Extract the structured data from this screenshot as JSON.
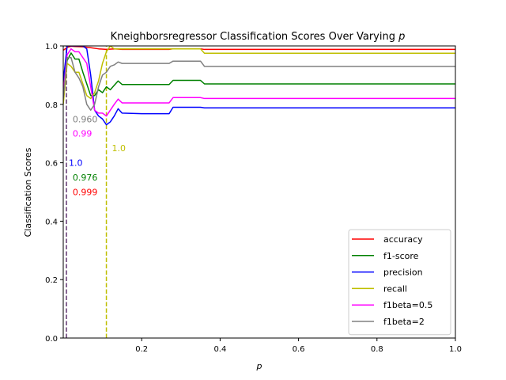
{
  "chart_data": {
    "type": "line",
    "title": "Kneighborsregressor Classification Scores Over Varying ",
    "title_var": "p",
    "xlabel": "p",
    "ylabel": "Classification Scores",
    "xlim": [
      0.0,
      1.0
    ],
    "ylim": [
      0.0,
      1.0
    ],
    "x_ticks": [
      0.2,
      0.4,
      0.6,
      0.8,
      1.0
    ],
    "x_tick_labels": [
      "0.2",
      "0.4",
      "0.6",
      "0.8",
      "1.0"
    ],
    "y_ticks": [
      0.0,
      0.2,
      0.4,
      0.6,
      0.8,
      1.0
    ],
    "y_tick_labels": [
      "0.0",
      "0.2",
      "0.4",
      "0.6",
      "0.8",
      "1.0"
    ],
    "grid": false,
    "legend_position": "bottom-right",
    "series": [
      {
        "name": "accuracy",
        "color": "#ff0000",
        "x": [
          0.0,
          0.01,
          0.02,
          0.03,
          0.05,
          0.07,
          0.09,
          0.11,
          0.13,
          0.15,
          0.2,
          0.27,
          0.28,
          0.35,
          0.36,
          0.4,
          0.6,
          0.8,
          1.0
        ],
        "y": [
          0.985,
          0.995,
          0.999,
          0.998,
          0.997,
          0.994,
          0.99,
          0.988,
          0.99,
          0.988,
          0.988,
          0.988,
          0.99,
          0.99,
          0.988,
          0.988,
          0.988,
          0.988,
          0.988
        ]
      },
      {
        "name": "f1-score",
        "color": "#008000",
        "x": [
          0.0,
          0.01,
          0.02,
          0.03,
          0.04,
          0.05,
          0.06,
          0.07,
          0.08,
          0.09,
          0.1,
          0.11,
          0.12,
          0.13,
          0.14,
          0.15,
          0.2,
          0.27,
          0.28,
          0.35,
          0.36,
          0.4,
          0.6,
          0.8,
          1.0
        ],
        "y": [
          0.87,
          0.95,
          0.976,
          0.955,
          0.955,
          0.91,
          0.87,
          0.83,
          0.83,
          0.85,
          0.84,
          0.86,
          0.85,
          0.865,
          0.88,
          0.868,
          0.868,
          0.868,
          0.882,
          0.882,
          0.87,
          0.87,
          0.87,
          0.87,
          0.87
        ]
      },
      {
        "name": "precision",
        "color": "#0000ff",
        "x": [
          0.0,
          0.01,
          0.02,
          0.03,
          0.05,
          0.06,
          0.07,
          0.08,
          0.09,
          0.1,
          0.11,
          0.12,
          0.13,
          0.14,
          0.15,
          0.2,
          0.27,
          0.28,
          0.35,
          0.36,
          0.4,
          0.6,
          0.8,
          1.0
        ],
        "y": [
          0.88,
          1.0,
          1.0,
          1.0,
          1.0,
          0.99,
          0.9,
          0.78,
          0.76,
          0.75,
          0.73,
          0.74,
          0.76,
          0.785,
          0.77,
          0.768,
          0.768,
          0.79,
          0.79,
          0.788,
          0.788,
          0.788,
          0.788,
          0.788
        ]
      },
      {
        "name": "recall",
        "color": "#bfbf00",
        "x": [
          0.0,
          0.01,
          0.02,
          0.03,
          0.04,
          0.05,
          0.06,
          0.07,
          0.08,
          0.09,
          0.1,
          0.11,
          0.12,
          0.13,
          0.2,
          0.27,
          0.28,
          0.35,
          0.36,
          0.4,
          0.6,
          0.8,
          1.0
        ],
        "y": [
          0.8,
          0.94,
          0.93,
          0.91,
          0.91,
          0.87,
          0.83,
          0.82,
          0.84,
          0.88,
          0.94,
          0.98,
          1.0,
          0.99,
          0.99,
          0.99,
          0.99,
          0.99,
          0.975,
          0.975,
          0.975,
          0.975,
          0.975
        ]
      },
      {
        "name": "f1beta=0.5",
        "color": "#ff00ff",
        "x": [
          0.0,
          0.01,
          0.02,
          0.03,
          0.04,
          0.05,
          0.06,
          0.07,
          0.08,
          0.09,
          0.1,
          0.11,
          0.12,
          0.13,
          0.14,
          0.15,
          0.2,
          0.27,
          0.28,
          0.35,
          0.36,
          0.4,
          0.6,
          0.8,
          1.0
        ],
        "y": [
          0.84,
          0.97,
          0.99,
          0.98,
          0.98,
          0.96,
          0.94,
          0.86,
          0.78,
          0.77,
          0.77,
          0.76,
          0.78,
          0.8,
          0.818,
          0.805,
          0.805,
          0.805,
          0.823,
          0.823,
          0.82,
          0.82,
          0.82,
          0.82,
          0.82
        ]
      },
      {
        "name": "f1beta=2",
        "color": "#808080",
        "x": [
          0.0,
          0.01,
          0.02,
          0.03,
          0.04,
          0.05,
          0.06,
          0.07,
          0.08,
          0.09,
          0.1,
          0.11,
          0.12,
          0.13,
          0.14,
          0.15,
          0.2,
          0.27,
          0.28,
          0.35,
          0.36,
          0.4,
          0.6,
          0.8,
          1.0
        ],
        "y": [
          0.82,
          0.96,
          0.96,
          0.91,
          0.89,
          0.86,
          0.8,
          0.78,
          0.8,
          0.86,
          0.9,
          0.91,
          0.93,
          0.935,
          0.945,
          0.94,
          0.94,
          0.94,
          0.948,
          0.948,
          0.93,
          0.93,
          0.93,
          0.93,
          0.93
        ]
      }
    ],
    "vlines": [
      {
        "x": 0.008,
        "color": "#ff0000"
      },
      {
        "x": 0.008,
        "color": "#008000"
      },
      {
        "x": 0.008,
        "color": "#0000ff"
      },
      {
        "x": 0.008,
        "color": "#ff00ff"
      },
      {
        "x": 0.008,
        "color": "#808080"
      },
      {
        "x": 0.11,
        "color": "#bfbf00"
      }
    ],
    "annotations": [
      {
        "text": "0.999",
        "color": "#ff0000",
        "x": 0.02,
        "y": 0.5
      },
      {
        "text": "0.976",
        "color": "#008000",
        "x": 0.02,
        "y": 0.55
      },
      {
        "text": "1.0",
        "color": "#0000ff",
        "x": 0.01,
        "y": 0.6
      },
      {
        "text": "1.0",
        "color": "#bfbf00",
        "x": 0.12,
        "y": 0.65
      },
      {
        "text": "0.99",
        "color": "#ff00ff",
        "x": 0.02,
        "y": 0.7
      },
      {
        "text": "0.960",
        "color": "#808080",
        "x": 0.02,
        "y": 0.75
      }
    ]
  }
}
